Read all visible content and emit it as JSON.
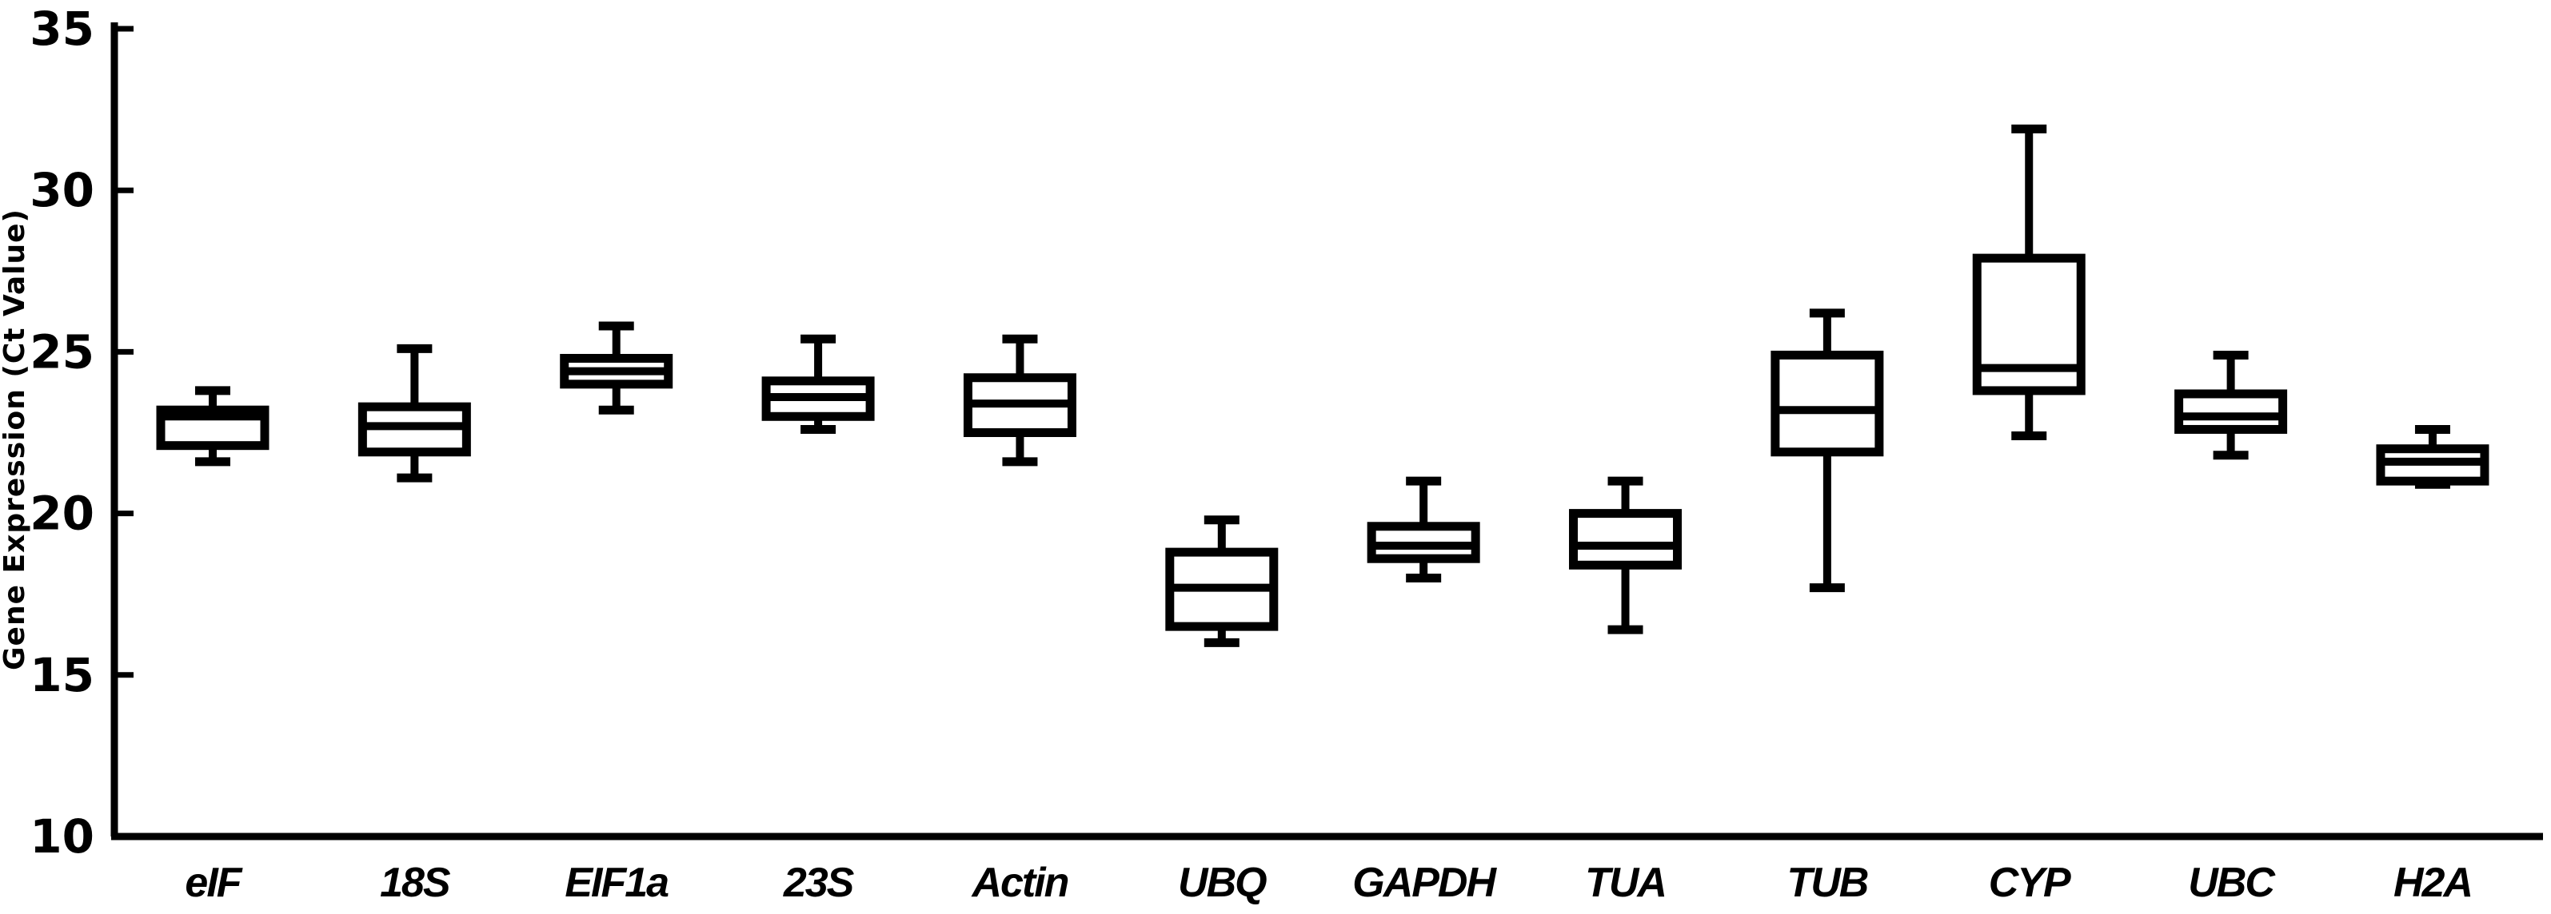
{
  "figure": {
    "background_color": "#ffffff",
    "stroke_color": "#000000"
  },
  "chart_data": {
    "type": "box",
    "title": "",
    "xlabel": "",
    "ylabel": "Gene Expression  (Ct Value)",
    "ylim": [
      10,
      35
    ],
    "yticks": [
      35,
      30,
      25,
      20,
      15,
      10
    ],
    "grid": false,
    "legend": false,
    "categories": [
      "eIF",
      "18S",
      "EIF1a",
      "23S",
      "Actin",
      "UBQ",
      "GAPDH",
      "TUA",
      "TUB",
      "CYP",
      "UBC",
      "H2A"
    ],
    "series": [
      {
        "name": "eIF",
        "min": 21.6,
        "q1": 22.1,
        "median": 23.0,
        "q3": 23.2,
        "max": 23.8
      },
      {
        "name": "18S",
        "min": 21.1,
        "q1": 21.9,
        "median": 22.7,
        "q3": 23.3,
        "max": 25.1
      },
      {
        "name": "EIF1a",
        "min": 23.2,
        "q1": 24.0,
        "median": 24.4,
        "q3": 24.8,
        "max": 25.8
      },
      {
        "name": "23S",
        "min": 22.6,
        "q1": 23.0,
        "median": 23.6,
        "q3": 24.1,
        "max": 25.4
      },
      {
        "name": "Actin",
        "min": 21.6,
        "q1": 22.5,
        "median": 23.4,
        "q3": 24.2,
        "max": 25.4
      },
      {
        "name": "UBQ",
        "min": 16.0,
        "q1": 16.5,
        "median": 17.7,
        "q3": 18.8,
        "max": 19.8
      },
      {
        "name": "GAPDH",
        "min": 18.0,
        "q1": 18.6,
        "median": 19.0,
        "q3": 19.6,
        "max": 21.0
      },
      {
        "name": "TUA",
        "min": 16.4,
        "q1": 18.4,
        "median": 19.0,
        "q3": 20.0,
        "max": 21.0
      },
      {
        "name": "TUB",
        "min": 17.7,
        "q1": 21.9,
        "median": 23.2,
        "q3": 24.9,
        "max": 26.2
      },
      {
        "name": "CYP",
        "min": 22.4,
        "q1": 23.8,
        "median": 24.5,
        "q3": 27.9,
        "max": 31.9
      },
      {
        "name": "UBC",
        "min": 21.8,
        "q1": 22.6,
        "median": 23.0,
        "q3": 23.7,
        "max": 24.9
      },
      {
        "name": "H2A",
        "min": 20.9,
        "q1": 21.0,
        "median": 21.6,
        "q3": 22.0,
        "max": 22.6
      }
    ]
  }
}
